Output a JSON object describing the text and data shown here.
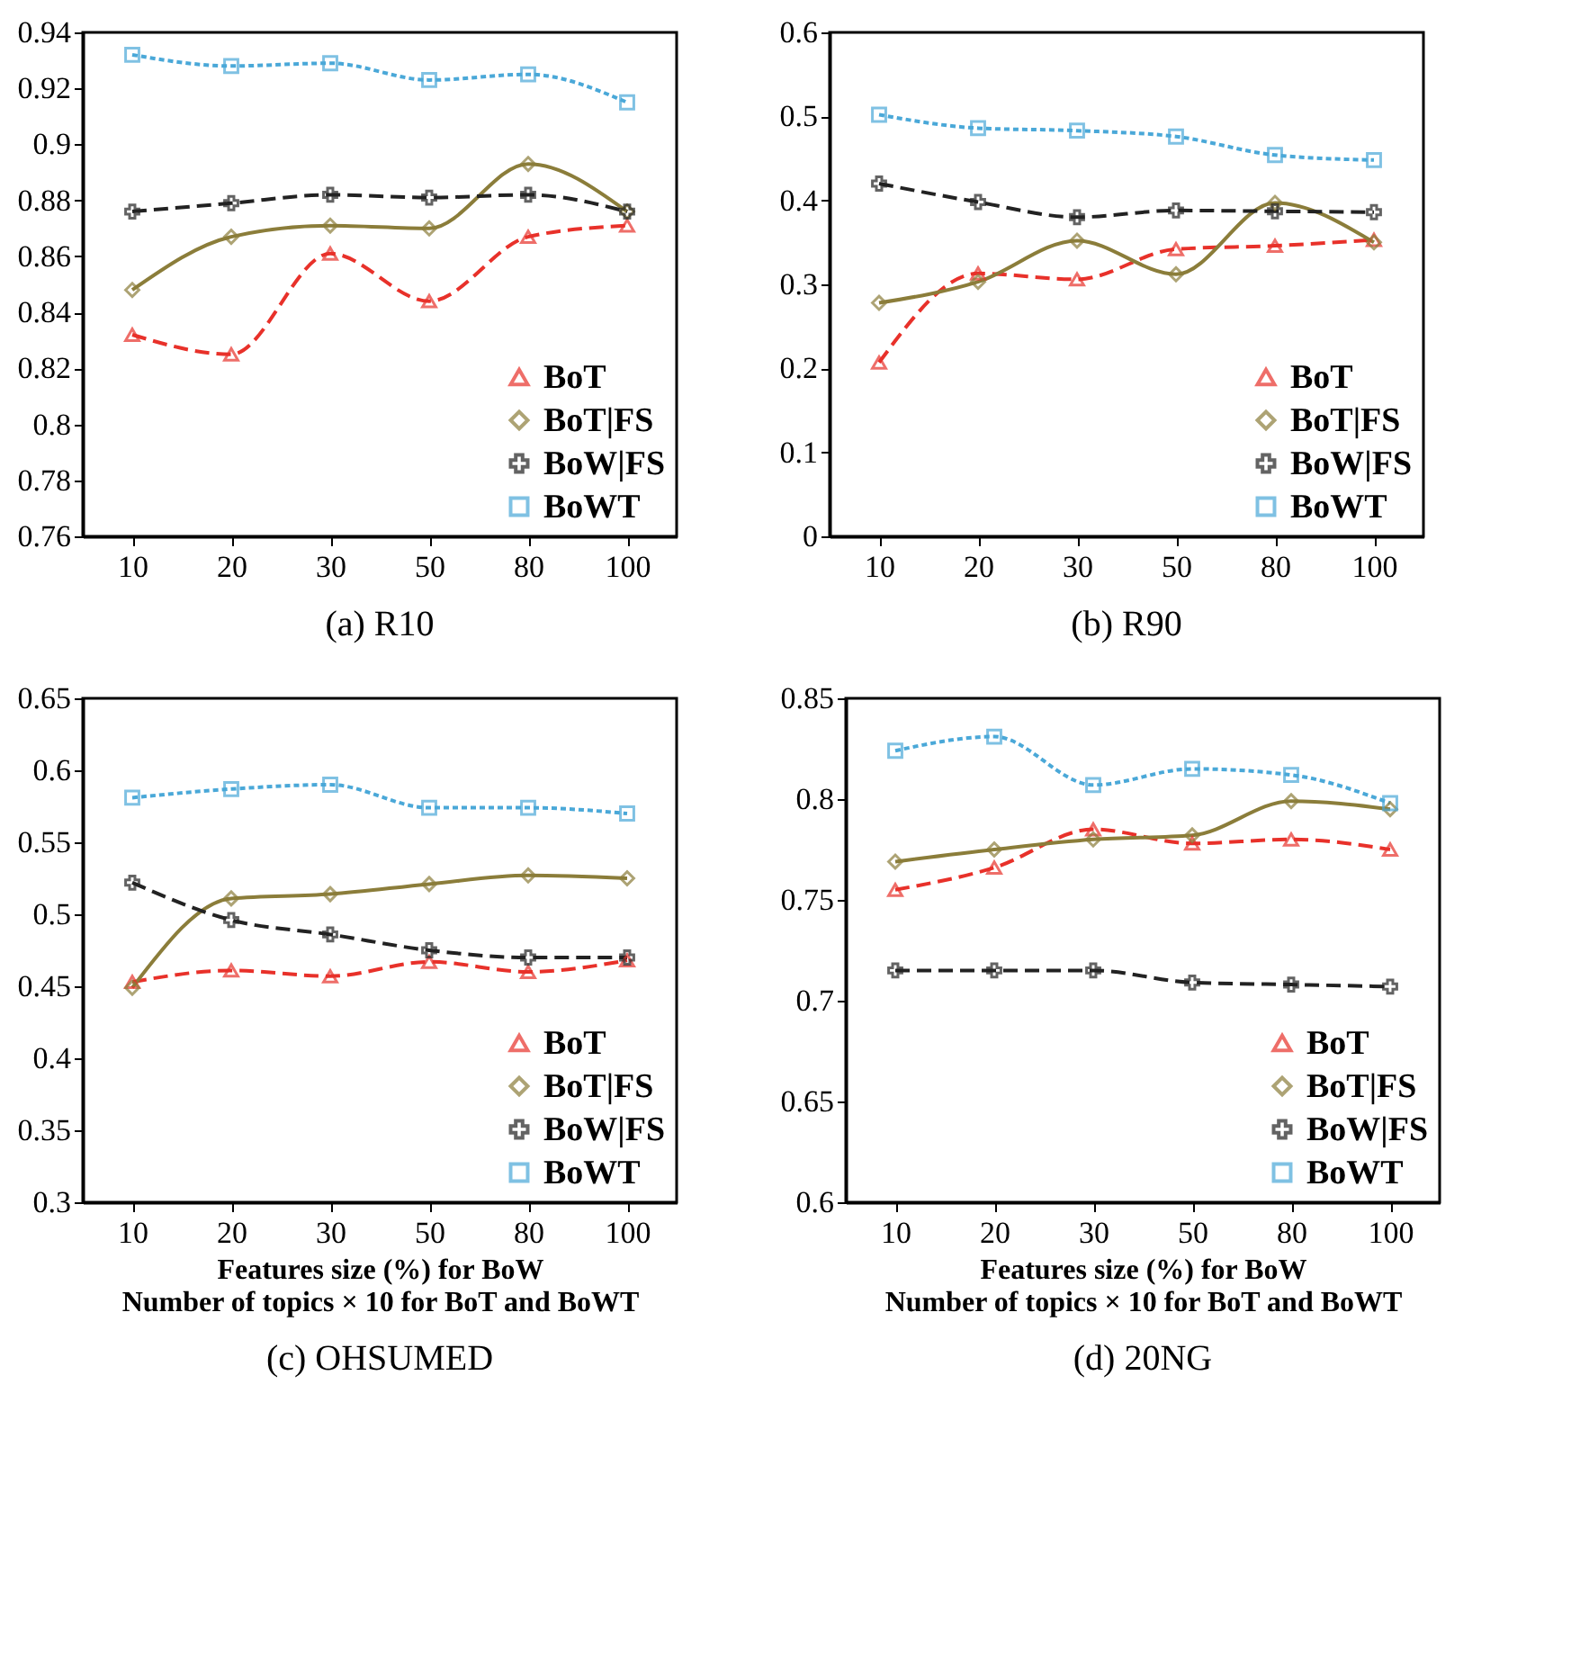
{
  "chart_data": [
    {
      "type": "line",
      "title": "(a) R10",
      "categories": [
        "10",
        "20",
        "30",
        "50",
        "80",
        "100"
      ],
      "ylim": [
        0.76,
        0.94
      ],
      "yticks": [
        0.76,
        0.78,
        0.8,
        0.82,
        0.84,
        0.86,
        0.88,
        0.9,
        0.92,
        0.94
      ],
      "grid": false,
      "legend": "bottom right",
      "series": [
        {
          "name": "BoT",
          "color": "#e8312a",
          "marker": "triangle",
          "line_style": "dashed",
          "values": [
            0.832,
            0.825,
            0.861,
            0.844,
            0.867,
            0.871
          ]
        },
        {
          "name": "BoT|FS",
          "color": "#8b7d3a",
          "marker": "diamond",
          "line_style": "solid",
          "values": [
            0.848,
            0.867,
            0.871,
            0.87,
            0.893,
            0.876
          ]
        },
        {
          "name": "BoW|FS",
          "color": "#222222",
          "marker": "cross",
          "line_style": "dashed",
          "values": [
            0.876,
            0.879,
            0.882,
            0.881,
            0.882,
            0.876
          ]
        },
        {
          "name": "BoWT",
          "color": "#4aa8d8",
          "marker": "square",
          "line_style": "dotted",
          "values": [
            0.932,
            0.928,
            0.929,
            0.923,
            0.925,
            0.915
          ]
        }
      ]
    },
    {
      "type": "line",
      "title": "(b) R90",
      "categories": [
        "10",
        "20",
        "30",
        "50",
        "80",
        "100"
      ],
      "ylim": [
        0,
        0.6
      ],
      "yticks": [
        0,
        0.1,
        0.2,
        0.3,
        0.4,
        0.5,
        0.6
      ],
      "grid": false,
      "legend": "bottom right",
      "series": [
        {
          "name": "BoT",
          "color": "#e8312a",
          "marker": "triangle",
          "line_style": "dashed",
          "values": [
            0.207,
            0.313,
            0.306,
            0.342,
            0.346,
            0.353
          ]
        },
        {
          "name": "BoT|FS",
          "color": "#8b7d3a",
          "marker": "diamond",
          "line_style": "solid",
          "values": [
            0.278,
            0.303,
            0.352,
            0.312,
            0.397,
            0.35
          ]
        },
        {
          "name": "BoW|FS",
          "color": "#222222",
          "marker": "cross",
          "line_style": "dashed",
          "values": [
            0.42,
            0.398,
            0.38,
            0.388,
            0.387,
            0.386
          ]
        },
        {
          "name": "BoWT",
          "color": "#4aa8d8",
          "marker": "square",
          "line_style": "dotted",
          "values": [
            0.502,
            0.486,
            0.483,
            0.476,
            0.454,
            0.448
          ]
        }
      ]
    },
    {
      "type": "line",
      "title": "(c) OHSUMED",
      "xlabel": "Features size (%) for BoW\nNumber of topics × 10 for BoT and BoWT",
      "categories": [
        "10",
        "20",
        "30",
        "50",
        "80",
        "100"
      ],
      "ylim": [
        0.3,
        0.65
      ],
      "yticks": [
        0.3,
        0.35,
        0.4,
        0.45,
        0.5,
        0.55,
        0.6,
        0.65
      ],
      "grid": false,
      "legend": "bottom right",
      "series": [
        {
          "name": "BoT",
          "color": "#e8312a",
          "marker": "triangle",
          "line_style": "dashed",
          "values": [
            0.453,
            0.461,
            0.457,
            0.467,
            0.46,
            0.468
          ]
        },
        {
          "name": "BoT|FS",
          "color": "#8b7d3a",
          "marker": "diamond",
          "line_style": "solid",
          "values": [
            0.449,
            0.511,
            0.514,
            0.521,
            0.527,
            0.525
          ]
        },
        {
          "name": "BoW|FS",
          "color": "#222222",
          "marker": "cross",
          "line_style": "dashed",
          "values": [
            0.522,
            0.496,
            0.486,
            0.475,
            0.47,
            0.47
          ]
        },
        {
          "name": "BoWT",
          "color": "#4aa8d8",
          "marker": "square",
          "line_style": "dotted",
          "values": [
            0.581,
            0.587,
            0.59,
            0.574,
            0.574,
            0.57
          ]
        }
      ]
    },
    {
      "type": "line",
      "title": "(d) 20NG",
      "xlabel": "Features size (%) for BoW\nNumber of topics × 10 for BoT and BoWT",
      "categories": [
        "10",
        "20",
        "30",
        "50",
        "80",
        "100"
      ],
      "ylim": [
        0.6,
        0.85
      ],
      "yticks": [
        0.6,
        0.65,
        0.7,
        0.75,
        0.8,
        0.85
      ],
      "grid": false,
      "legend": "bottom right",
      "series": [
        {
          "name": "BoT",
          "color": "#e8312a",
          "marker": "triangle",
          "line_style": "dashed",
          "values": [
            0.755,
            0.766,
            0.785,
            0.778,
            0.78,
            0.775
          ]
        },
        {
          "name": "BoT|FS",
          "color": "#8b7d3a",
          "marker": "diamond",
          "line_style": "solid",
          "values": [
            0.769,
            0.775,
            0.78,
            0.782,
            0.799,
            0.795
          ]
        },
        {
          "name": "BoW|FS",
          "color": "#222222",
          "marker": "cross",
          "line_style": "dashed",
          "values": [
            0.715,
            0.715,
            0.715,
            0.709,
            0.708,
            0.707
          ]
        },
        {
          "name": "BoWT",
          "color": "#4aa8d8",
          "marker": "square",
          "line_style": "dotted",
          "values": [
            0.824,
            0.831,
            0.807,
            0.815,
            0.812,
            0.798
          ]
        }
      ]
    }
  ]
}
